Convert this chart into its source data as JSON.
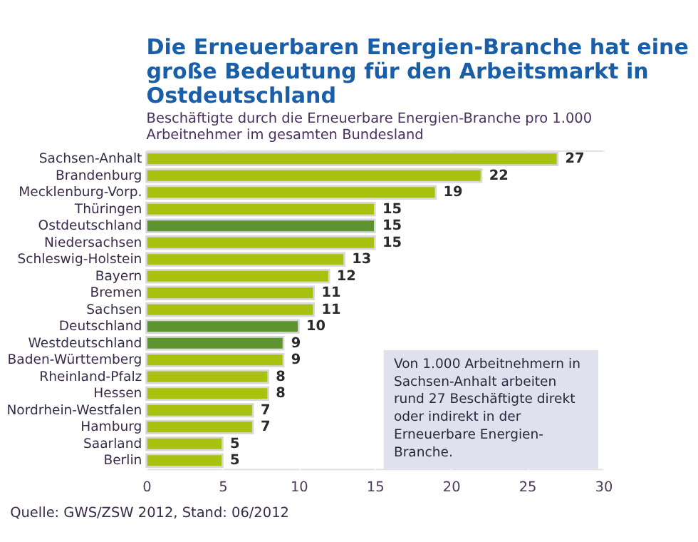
{
  "chart_data": {
    "type": "bar",
    "orientation": "horizontal",
    "title": "Die Erneuerbaren Energien-Branche hat eine große Bedeutung für den Arbeitsmarkt in Ostdeutschland",
    "subtitle": "Beschäftigte durch die Erneuerbare Energien-Branche pro 1.000 Arbeitnehmer im gesamten Bundesland",
    "categories": [
      "Sachsen-Anhalt",
      "Brandenburg",
      "Mecklenburg-Vorp.",
      "Thüringen",
      "Ostdeutschland",
      "Niedersachsen",
      "Schleswig-Holstein",
      "Bayern",
      "Bremen",
      "Sachsen",
      "Deutschland",
      "Westdeutschland",
      "Baden-Württemberg",
      "Rheinland-Pfalz",
      "Hessen",
      "Nordrhein-Westfalen",
      "Hamburg",
      "Saarland",
      "Berlin"
    ],
    "values": [
      27,
      22,
      19,
      15,
      15,
      15,
      13,
      12,
      11,
      11,
      10,
      9,
      9,
      8,
      8,
      7,
      7,
      5,
      5
    ],
    "colors": [
      "#a8c20f",
      "#a8c20f",
      "#a8c20f",
      "#a8c20f",
      "#5e9430",
      "#a8c20f",
      "#a8c20f",
      "#a8c20f",
      "#a8c20f",
      "#a8c20f",
      "#5e9430",
      "#5e9430",
      "#a8c20f",
      "#a8c20f",
      "#a8c20f",
      "#a8c20f",
      "#a8c20f",
      "#a8c20f",
      "#a8c20f"
    ],
    "xlim": [
      0,
      30
    ],
    "xticks": [
      0,
      5,
      10,
      15,
      20,
      25,
      30
    ],
    "grid": "x",
    "data_labels": true,
    "annotations": [
      "Von 1.000 Arbeitnehmern in Sachsen-Anhalt arbeiten rund 27 Beschäftigte direkt oder indirekt in der Erneuerbare Energien-Branche.",
      "Quelle: GWS/ZSW 2012, Stand: 06/2012"
    ]
  }
}
